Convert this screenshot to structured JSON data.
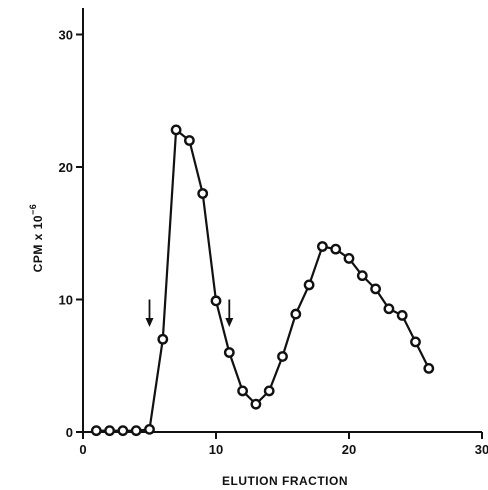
{
  "chart_data": {
    "type": "line",
    "title": "",
    "xlabel": "ELUTION FRACTION",
    "ylabel_main": "CPM x 10",
    "ylabel_exp": "−6",
    "xlim": [
      0,
      30
    ],
    "ylim": [
      0,
      32
    ],
    "xticks": [
      0,
      10,
      20,
      30
    ],
    "yticks": [
      0,
      10,
      20,
      30
    ],
    "grid": false,
    "series": [
      {
        "x": [
          1,
          2,
          3,
          4,
          5,
          6,
          7,
          8,
          9,
          10,
          11,
          12,
          13,
          14,
          15,
          16,
          17,
          18,
          19,
          20,
          21,
          22,
          23,
          24,
          25,
          26
        ],
        "y": [
          0.1,
          0.1,
          0.1,
          0.1,
          0.2,
          7.0,
          22.8,
          22.0,
          18.0,
          9.9,
          6.0,
          3.1,
          2.1,
          3.1,
          5.7,
          8.9,
          11.1,
          14.0,
          13.8,
          13.1,
          11.8,
          10.8,
          9.3,
          8.8,
          6.8,
          4.8
        ]
      }
    ],
    "annotations": [
      {
        "type": "arrow-down",
        "x": 5,
        "y_from": 10,
        "y_to": 8
      },
      {
        "type": "arrow-down",
        "x": 11,
        "y_from": 10,
        "y_to": 8
      }
    ]
  }
}
